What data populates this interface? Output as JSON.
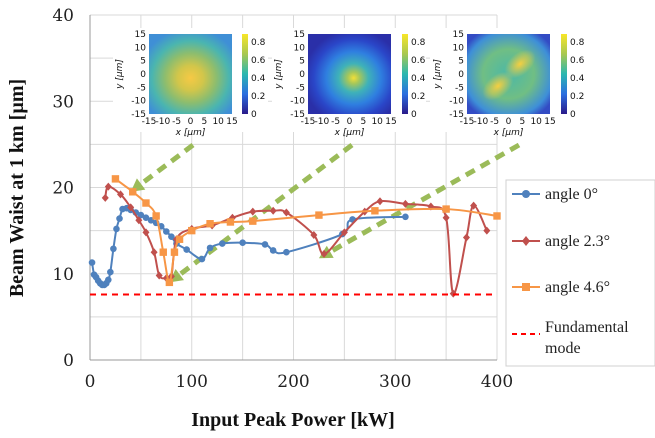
{
  "chart_data": {
    "type": "line",
    "title": "",
    "xlabel": "Input Peak Power [kW]",
    "ylabel": "Beam Waist at 1 km [µm]",
    "xlim": [
      0,
      400
    ],
    "ylim": [
      0,
      40
    ],
    "xticks": [
      0,
      100,
      200,
      300,
      400
    ],
    "yticks": [
      0,
      10,
      20,
      30,
      40
    ],
    "grid": true,
    "legend_position": "right",
    "series": [
      {
        "name": "angle 0°",
        "color": "#4f81bd",
        "marker": "circle",
        "x": [
          2,
          4,
          6,
          8,
          10,
          12,
          14,
          16,
          18,
          20,
          23,
          26,
          29,
          32,
          36,
          40,
          45,
          50,
          55,
          60,
          65,
          70,
          75,
          80,
          85,
          95,
          110,
          118,
          130,
          150,
          172,
          180,
          193,
          248,
          258,
          310
        ],
        "y": [
          11.3,
          9.9,
          9.6,
          9.2,
          8.9,
          8.7,
          8.7,
          8.9,
          9.3,
          10.2,
          12.9,
          15.2,
          16.4,
          17.5,
          17.6,
          17.4,
          17.1,
          16.8,
          16.5,
          16.2,
          15.9,
          15.5,
          14.9,
          14.3,
          13.5,
          12.8,
          11.7,
          13.0,
          13.5,
          13.6,
          13.4,
          12.7,
          12.5,
          14.6,
          16.3,
          16.6
        ]
      },
      {
        "name": "angle 2.3°",
        "color": "#c0504d",
        "marker": "diamond",
        "x": [
          15,
          18,
          30,
          40,
          48,
          55,
          63,
          68,
          75,
          80,
          85,
          100,
          120,
          140,
          160,
          180,
          193,
          220,
          230,
          250,
          270,
          285,
          310,
          335,
          350,
          357,
          370,
          377,
          390
        ],
        "y": [
          18.8,
          20.1,
          19.2,
          17.7,
          16.2,
          14.8,
          12.5,
          9.8,
          9.5,
          9.7,
          14.0,
          15.2,
          15.6,
          16.5,
          17.2,
          17.3,
          17.1,
          14.5,
          12.3,
          14.8,
          17.2,
          18.4,
          18.1,
          17.8,
          16.5,
          7.7,
          14.2,
          17.9,
          15.0
        ]
      },
      {
        "name": "angle 4.6°",
        "color": "#f79646",
        "marker": "square",
        "x": [
          25,
          42,
          55,
          65,
          72,
          78,
          83,
          88,
          100,
          118,
          138,
          160,
          225,
          280,
          350,
          400
        ],
        "y": [
          21.0,
          19.5,
          18.2,
          16.7,
          12.5,
          9.0,
          12.5,
          14.0,
          15.0,
          15.8,
          16.0,
          16.1,
          16.8,
          17.3,
          17.5,
          16.7
        ]
      },
      {
        "name": "Fundamental mode",
        "color": "#ff0000",
        "style": "dashed",
        "x": [
          0,
          400
        ],
        "y": [
          7.6,
          7.6
        ]
      }
    ],
    "insets": [
      {
        "xlabel": "x [µm]",
        "ylabel": "y [µm]",
        "axis_ticks": [
          "-15",
          "-10",
          "-5",
          "0",
          "5",
          "10",
          "15"
        ],
        "colorbar_ticks": [
          "0",
          "0.2",
          "0.4",
          "0.6",
          "0.8"
        ],
        "arrow_points_to": {
          "x": 40,
          "y": 19.5
        }
      },
      {
        "xlabel": "x [µm]",
        "ylabel": "y [µm]",
        "axis_ticks": [
          "-15",
          "-10",
          "-5",
          "0",
          "5",
          "10",
          "15"
        ],
        "colorbar_ticks": [
          "0",
          "0.2",
          "0.4",
          "0.6",
          "0.8"
        ],
        "arrow_points_to": {
          "x": 78,
          "y": 9.0
        }
      },
      {
        "xlabel": "x [µm]",
        "ylabel": "y [µm]",
        "axis_ticks": [
          "-15",
          "-10",
          "-5",
          "0",
          "5",
          "10",
          "15"
        ],
        "colorbar_ticks": [
          "0",
          "0.2",
          "0.4",
          "0.6",
          "0.8"
        ],
        "arrow_points_to": {
          "x": 225,
          "y": 11.8
        }
      }
    ],
    "arrow_color": "#9bbb59"
  }
}
